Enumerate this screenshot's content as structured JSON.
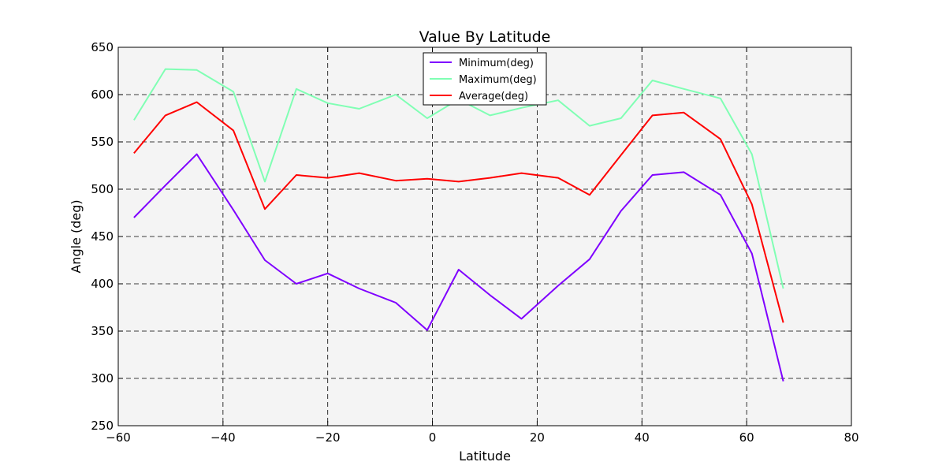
{
  "chart_data": {
    "type": "line",
    "title": "Value By Latitude",
    "xlabel": "Latitude",
    "ylabel": "Angle (deg)",
    "xlim": [
      -60,
      80
    ],
    "ylim": [
      250,
      650
    ],
    "xticks": [
      -60,
      -40,
      -20,
      0,
      20,
      40,
      60,
      80
    ],
    "yticks": [
      250,
      300,
      350,
      400,
      450,
      500,
      550,
      600,
      650
    ],
    "xtick_labels": [
      "−60",
      "−40",
      "−20",
      "0",
      "20",
      "40",
      "60",
      "80"
    ],
    "ytick_labels": [
      "250",
      "300",
      "350",
      "400",
      "450",
      "500",
      "550",
      "600",
      "650"
    ],
    "grid": true,
    "legend_position": "top-center",
    "background": "#f4f4f4",
    "x": [
      -57,
      -51,
      -45,
      -38,
      -32,
      -26,
      -20,
      -14,
      -7,
      -1,
      5,
      11,
      17,
      24,
      30,
      36,
      42,
      48,
      55,
      61,
      67
    ],
    "series": [
      {
        "name": "Minimum(deg)",
        "color": "#7f00ff",
        "values": [
          470,
          504,
          537,
          478,
          425,
          400,
          411,
          395,
          380,
          351,
          415,
          388,
          363,
          398,
          426,
          477,
          515,
          518,
          494,
          432,
          297
        ]
      },
      {
        "name": "Maximum(deg)",
        "color": "#80ffb4",
        "values": [
          573,
          627,
          626,
          603,
          508,
          606,
          591,
          585,
          600,
          575,
          595,
          578,
          586,
          594,
          567,
          575,
          615,
          606,
          596,
          537,
          395
        ]
      },
      {
        "name": "Average(deg)",
        "color": "#ff0000",
        "values": [
          538,
          578,
          592,
          562,
          479,
          515,
          512,
          517,
          509,
          511,
          508,
          512,
          517,
          512,
          494,
          536,
          578,
          581,
          553,
          484,
          359
        ]
      }
    ]
  }
}
